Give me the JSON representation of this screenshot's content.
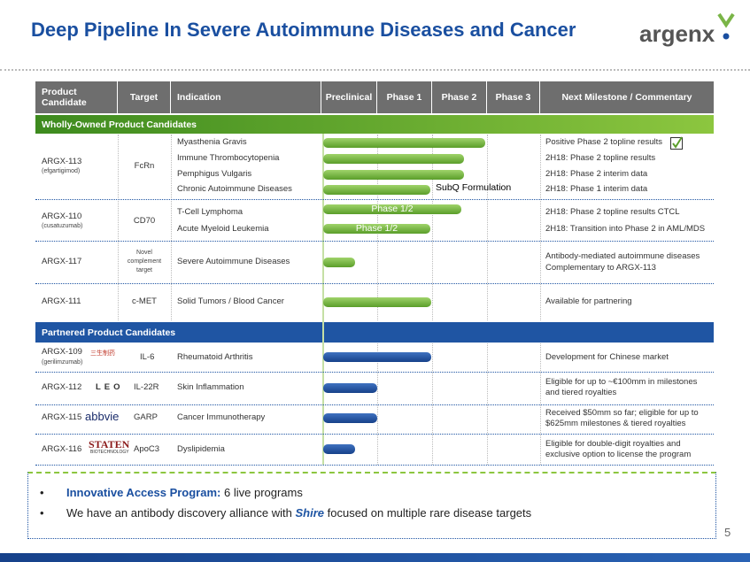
{
  "header": {
    "title": "Deep Pipeline In Severe Autoimmune Diseases and Cancer",
    "logo": "argenx"
  },
  "table": {
    "columns": [
      "Product Candidate",
      "Target",
      "Indication",
      "Preclinical",
      "Phase 1",
      "Phase 2",
      "Phase 3",
      "Next Milestone / Commentary"
    ],
    "sections": [
      {
        "title": "Wholly-Owned Product Candidates",
        "rows": [
          {
            "product": "ARGX-113",
            "generic": "(efgartigimod)",
            "target": "FcRn",
            "indications": [
              "Myasthenia Gravis",
              "Immune Thrombocytopenia",
              "Pemphigus Vulgaris",
              "Chronic Autoimmune Diseases"
            ],
            "bar_note": "SubQ Formulation",
            "milestones": [
              "Positive Phase 2 topline results",
              "2H18: Phase 2 topline results",
              "2H18: Phase 2 interim data",
              "2H18: Phase 1 interim data"
            ]
          },
          {
            "product": "ARGX-110",
            "generic": "(cusatuzumab)",
            "target": "CD70",
            "indications": [
              "T-Cell Lymphoma",
              "Acute Myeloid Leukemia"
            ],
            "bar_labels": [
              "Phase 1/2",
              "Phase 1/2"
            ],
            "milestones": [
              "2H18: Phase 2 topline results CTCL",
              "2H18: Transition into Phase 2 in AML/MDS"
            ]
          },
          {
            "product": "ARGX-117",
            "target": "Novel complement target",
            "indications": [
              "Severe Autoimmune Diseases"
            ],
            "milestones": [
              "Antibody-mediated autoimmune diseases",
              "Complementary to ARGX-113"
            ]
          },
          {
            "product": "ARGX-111",
            "target": "c-MET",
            "indications": [
              "Solid Tumors / Blood Cancer"
            ],
            "milestones": [
              "Available for partnering"
            ]
          }
        ]
      },
      {
        "title": "Partnered Product Candidates",
        "rows": [
          {
            "product": "ARGX-109",
            "generic": "(gerilimzumab)",
            "partner": "三生制药",
            "target": "IL-6",
            "indications": [
              "Rheumatoid Arthritis"
            ],
            "milestones": [
              "Development for Chinese market"
            ]
          },
          {
            "product": "ARGX-112",
            "partner": "LEO",
            "target": "IL-22R",
            "indications": [
              "Skin Inflammation"
            ],
            "milestones": [
              "Eligible for up to ~€100mm in milestones and tiered royalties"
            ]
          },
          {
            "product": "ARGX-115",
            "partner": "abbvie",
            "target": "GARP",
            "indications": [
              "Cancer Immunotherapy"
            ],
            "milestones": [
              "Received $50mm so far; eligible for up to $625mm milestones & tiered royalties"
            ]
          },
          {
            "product": "ARGX-116",
            "partner": "STATEN",
            "partner_sub": "BIOTECHNOLOGY",
            "target": "ApoC3",
            "indications": [
              "Dyslipidemia"
            ],
            "milestones": [
              "Eligible for double-digit royalties and exclusive option to license the program"
            ]
          }
        ]
      }
    ]
  },
  "footer": {
    "bullets": [
      {
        "bold": "Innovative Access Program:",
        "text": "6 live programs"
      },
      {
        "text": "We have an antibody discovery alliance with",
        "partner": "Shire",
        "rest": "focused on multiple rare disease targets"
      }
    ],
    "page": "5"
  }
}
